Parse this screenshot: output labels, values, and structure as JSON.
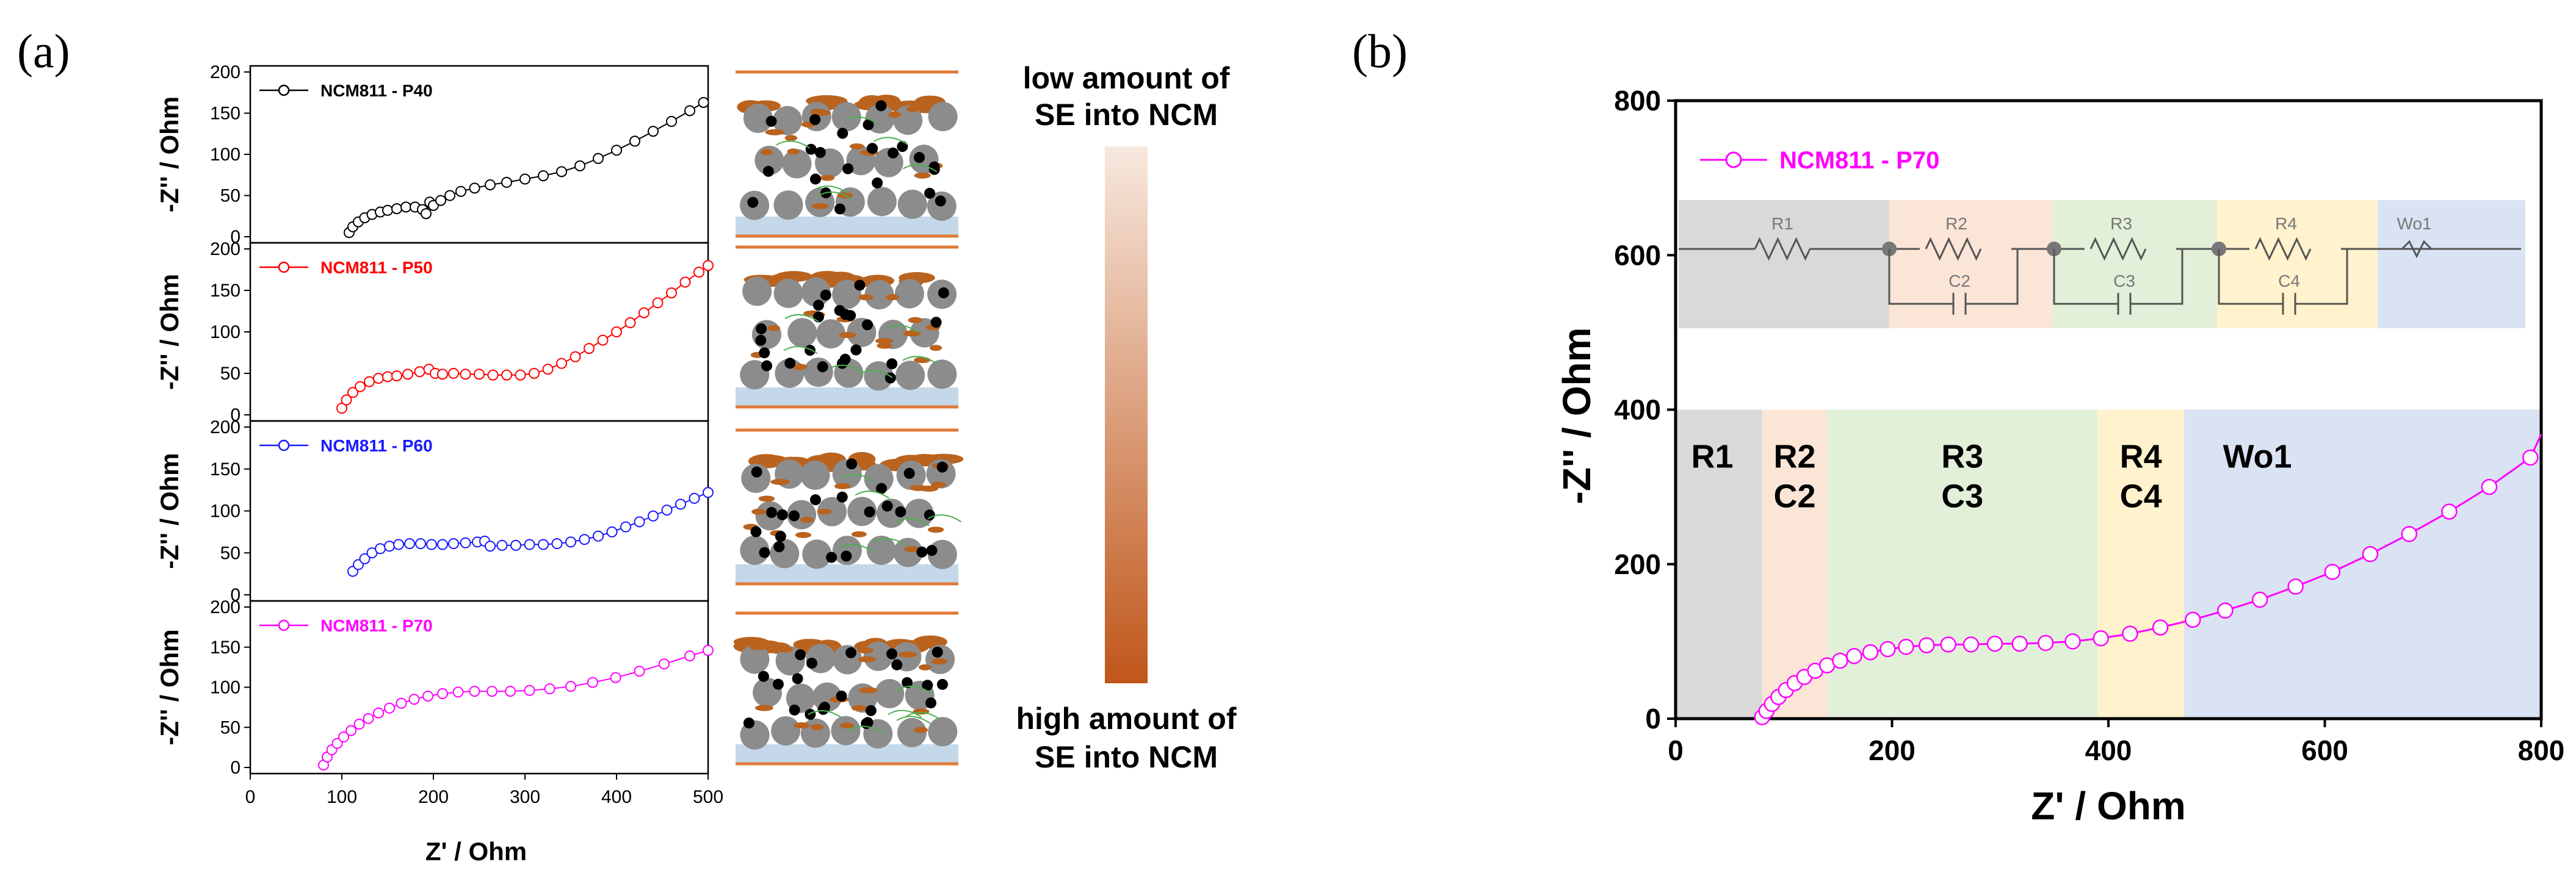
{
  "figure": {
    "panel_a_label": "(a)",
    "panel_b_label": "(b)",
    "schematic_top_label": [
      "low amount of",
      "SE into NCM"
    ],
    "schematic_bottom_label": [
      "high amount of",
      "SE into NCM"
    ],
    "colors": {
      "p40": "#000000",
      "p50": "#ff0000",
      "p60": "#1a1aff",
      "p70": "#ff00ff",
      "current_collector": "#e07b39",
      "electrolyte_layer": "#c4d8ea",
      "binder": "#b9631f",
      "gradient_top": "#f7e8de",
      "gradient_bottom": "#c0561a"
    }
  },
  "chart_data": [
    {
      "type": "scatter",
      "title": "NCM811 - P40",
      "legend": "NCM811 - P40",
      "xlabel": "Z' / Ohm",
      "ylabel": "-Z'' / Ohm",
      "xlim": [
        0,
        500
      ],
      "ylim": [
        0,
        200
      ],
      "xticks": [
        0,
        100,
        200,
        300,
        400,
        500
      ],
      "yticks": [
        0,
        50,
        100,
        150,
        200
      ],
      "series": [
        {
          "name": "NCM811 - P40",
          "color": "#000000",
          "x": [
            108,
            112,
            118,
            125,
            133,
            142,
            150,
            160,
            170,
            180,
            188,
            192,
            196,
            200,
            208,
            218,
            230,
            245,
            262,
            280,
            300,
            320,
            340,
            360,
            380,
            400,
            420,
            440,
            460,
            480,
            495
          ],
          "y": [
            5,
            12,
            18,
            23,
            27,
            30,
            32,
            34,
            36,
            36,
            33,
            28,
            42,
            38,
            44,
            50,
            55,
            59,
            63,
            66,
            70,
            74,
            79,
            86,
            95,
            105,
            116,
            128,
            140,
            153,
            163
          ]
        }
      ]
    },
    {
      "type": "scatter",
      "title": "NCM811 - P50",
      "legend": "NCM811 - P50",
      "xlabel": "Z' / Ohm",
      "ylabel": "-Z'' / Ohm",
      "xlim": [
        0,
        500
      ],
      "ylim": [
        0,
        200
      ],
      "xticks": [
        0,
        100,
        200,
        300,
        400,
        500
      ],
      "yticks": [
        0,
        50,
        100,
        150,
        200
      ],
      "series": [
        {
          "name": "NCM811 - P50",
          "color": "#ff0000",
          "x": [
            100,
            105,
            112,
            120,
            130,
            140,
            150,
            160,
            172,
            185,
            195,
            202,
            210,
            222,
            235,
            250,
            265,
            280,
            295,
            310,
            325,
            340,
            355,
            370,
            385,
            400,
            415,
            430,
            445,
            460,
            475,
            490,
            500
          ],
          "y": [
            8,
            18,
            27,
            34,
            40,
            44,
            46,
            47,
            49,
            52,
            55,
            50,
            49,
            50,
            49,
            49,
            48,
            48,
            48,
            50,
            55,
            62,
            70,
            80,
            90,
            100,
            111,
            123,
            135,
            147,
            160,
            172,
            180
          ]
        }
      ]
    },
    {
      "type": "scatter",
      "title": "NCM811 - P60",
      "legend": "NCM811 - P60",
      "xlabel": "Z' / Ohm",
      "ylabel": "-Z'' / Ohm",
      "xlim": [
        0,
        500
      ],
      "ylim": [
        0,
        200
      ],
      "xticks": [
        0,
        100,
        200,
        300,
        400,
        500
      ],
      "yticks": [
        0,
        50,
        100,
        150,
        200
      ],
      "series": [
        {
          "name": "NCM811 - P60",
          "color": "#1a1aff",
          "x": [
            112,
            118,
            125,
            133,
            142,
            152,
            162,
            174,
            186,
            198,
            210,
            222,
            235,
            248,
            256,
            262,
            275,
            290,
            305,
            320,
            335,
            350,
            365,
            380,
            395,
            410,
            425,
            440,
            455,
            470,
            485,
            500
          ],
          "y": [
            28,
            36,
            43,
            50,
            55,
            58,
            60,
            61,
            61,
            60,
            60,
            61,
            62,
            63,
            64,
            58,
            59,
            59,
            60,
            60,
            61,
            63,
            66,
            70,
            75,
            81,
            87,
            94,
            101,
            108,
            115,
            122
          ]
        }
      ]
    },
    {
      "type": "scatter",
      "title": "NCM811 - P70",
      "legend": "NCM811 - P70",
      "xlabel": "Z' / Ohm",
      "ylabel": "-Z'' / Ohm",
      "xlim": [
        0,
        500
      ],
      "ylim": [
        0,
        200
      ],
      "xticks": [
        0,
        100,
        200,
        300,
        400,
        500
      ],
      "yticks": [
        0,
        50,
        100,
        150,
        200
      ],
      "series": [
        {
          "name": "NCM811 - P70",
          "color": "#ff00ff",
          "x": [
            80,
            84,
            89,
            95,
            102,
            110,
            119,
            129,
            140,
            152,
            165,
            179,
            194,
            210,
            227,
            245,
            264,
            284,
            305,
            327,
            350,
            374,
            399,
            425,
            452,
            480,
            500
          ],
          "y": [
            3,
            13,
            22,
            30,
            38,
            46,
            54,
            61,
            68,
            74,
            80,
            85,
            89,
            92,
            94,
            95,
            95,
            95,
            96,
            98,
            101,
            106,
            112,
            120,
            129,
            139,
            146
          ]
        }
      ]
    },
    {
      "type": "scatter",
      "title": "NCM811 - P70",
      "legend": "NCM811 - P70",
      "xlabel": "Z' / Ohm",
      "ylabel": "-Z'' / Ohm",
      "xlim": [
        0,
        800
      ],
      "ylim": [
        0,
        800
      ],
      "xticks": [
        0,
        200,
        400,
        600,
        800
      ],
      "yticks": [
        0,
        200,
        400,
        600,
        800
      ],
      "regions": [
        {
          "label": [
            "R1"
          ],
          "x0": 0,
          "x1": 80,
          "color": "#d9d9d9"
        },
        {
          "label": [
            "R2",
            "C2"
          ],
          "x0": 80,
          "x1": 140,
          "color": "#fbe5d6"
        },
        {
          "label": [
            "R3",
            "C3"
          ],
          "x0": 140,
          "x1": 390,
          "color": "#e2f0d9"
        },
        {
          "label": [
            "R4",
            "C4"
          ],
          "x0": 390,
          "x1": 470,
          "color": "#fff2cc"
        },
        {
          "label": [
            "Wo1"
          ],
          "x0": 470,
          "x1": 800,
          "color": "#dae3f3"
        }
      ],
      "circuit_elements": [
        "R1",
        "R2",
        "C2",
        "R3",
        "C3",
        "R4",
        "C4",
        "Wo1"
      ],
      "series": [
        {
          "name": "NCM811 - P70",
          "color": "#ff00ff",
          "x": [
            80,
            84,
            89,
            95,
            102,
            110,
            119,
            129,
            140,
            152,
            165,
            180,
            196,
            213,
            232,
            252,
            273,
            295,
            318,
            342,
            367,
            393,
            420,
            448,
            478,
            508,
            540,
            573,
            607,
            642,
            678,
            715,
            752,
            790
          ],
          "y": [
            2,
            10,
            19,
            28,
            37,
            46,
            54,
            62,
            69,
            75,
            81,
            86,
            90,
            93,
            95,
            96,
            96,
            97,
            97,
            98,
            100,
            104,
            110,
            118,
            128,
            140,
            154,
            171,
            190,
            213,
            239,
            268,
            300,
            338
          ]
        }
      ]
    }
  ]
}
